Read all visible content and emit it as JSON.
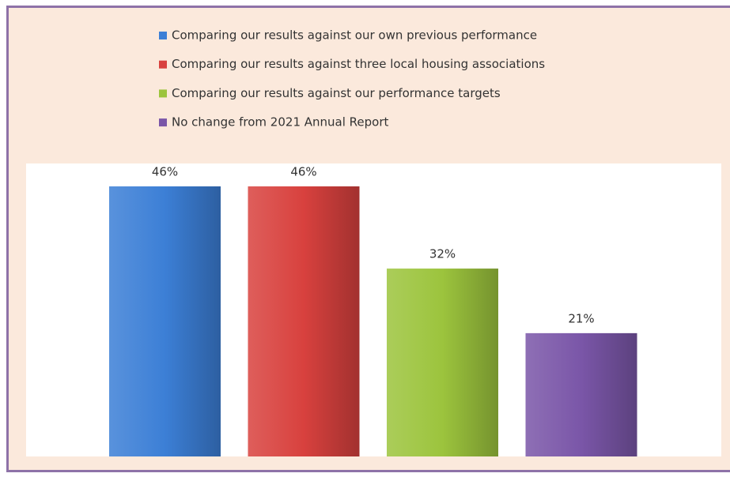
{
  "chart_data": {
    "type": "bar",
    "categories": [
      "Comparing our results against our own previous performance",
      "Comparing our results against three local housing associations",
      "Comparing our results against our performance targets",
      "No change from 2021 Annual Report"
    ],
    "values": [
      46,
      46,
      32,
      21
    ],
    "value_labels": [
      "46%",
      "46%",
      "32%",
      "21%"
    ],
    "colors": [
      "#3c7fd6",
      "#d8413e",
      "#9cc43d",
      "#7a56a8"
    ]
  }
}
